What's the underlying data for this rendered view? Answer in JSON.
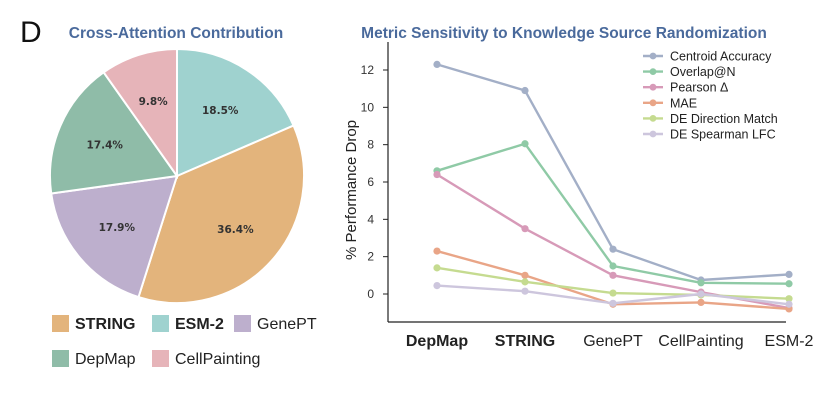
{
  "panel_label": "D",
  "chart_data": [
    {
      "type": "pie",
      "title": "Cross-Attention Contribution",
      "slices": [
        {
          "label": "ESM-2",
          "value": 18.5,
          "display": "18.5%",
          "color": "#9fd2cf",
          "bold": true
        },
        {
          "label": "STRING",
          "value": 36.4,
          "display": "36.4%",
          "color": "#e3b47c",
          "bold": true
        },
        {
          "label": "GenePT",
          "value": 17.9,
          "display": "17.9%",
          "color": "#bdafcd",
          "bold": false
        },
        {
          "label": "DepMap",
          "value": 17.4,
          "display": "17.4%",
          "color": "#8fbca8",
          "bold": false
        },
        {
          "label": "CellPainting",
          "value": 9.8,
          "display": "9.8%",
          "color": "#e6b4b9",
          "bold": false
        }
      ],
      "legend_order": [
        "STRING",
        "ESM-2",
        "GenePT",
        "DepMap",
        "CellPainting"
      ]
    },
    {
      "type": "line",
      "title": "Metric Sensitivity to Knowledge Source Randomization",
      "ylabel": "% Performance Drop",
      "xlabel": "",
      "categories": [
        "DepMap",
        "STRING",
        "GenePT",
        "CellPainting",
        "ESM-2"
      ],
      "bold_categories": [
        "DepMap",
        "STRING"
      ],
      "ylim": [
        -1.5,
        13.5
      ],
      "yticks": [
        0,
        2,
        4,
        6,
        8,
        10,
        12
      ],
      "legend_position": "top-right",
      "series": [
        {
          "name": "Centroid Accuracy",
          "color": "#a3afc7",
          "values": [
            12.3,
            10.9,
            2.4,
            0.75,
            1.05
          ]
        },
        {
          "name": "Overlap@N",
          "color": "#8fcaa6",
          "values": [
            6.6,
            8.05,
            1.5,
            0.6,
            0.55
          ]
        },
        {
          "name": "Pearson Δ",
          "color": "#d79ab8",
          "values": [
            6.4,
            3.5,
            1.0,
            0.1,
            -0.75
          ]
        },
        {
          "name": "MAE",
          "color": "#e9a587",
          "values": [
            2.3,
            1.0,
            -0.55,
            -0.45,
            -0.8
          ]
        },
        {
          "name": "DE Direction Match",
          "color": "#c5db90",
          "values": [
            1.4,
            0.65,
            0.05,
            -0.05,
            -0.25
          ]
        },
        {
          "name": "DE Spearman LFC",
          "color": "#cdc6dd",
          "values": [
            0.45,
            0.15,
            -0.5,
            0.0,
            -0.55
          ]
        }
      ]
    }
  ]
}
